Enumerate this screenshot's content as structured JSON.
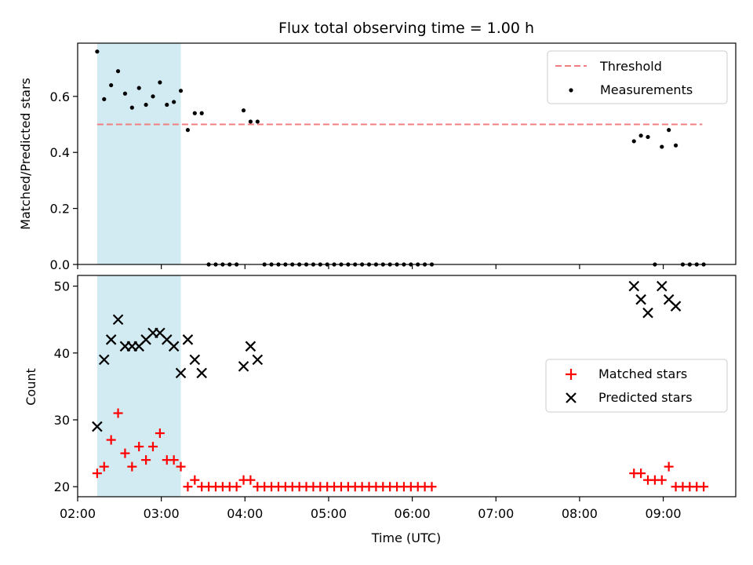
{
  "chart_data": [
    {
      "type": "scatter",
      "title": "Flux total observing time = 1.00 h",
      "xlabel": "",
      "ylabel": "Matched/Predicted stars",
      "xlim": [
        "02:00",
        "09:52"
      ],
      "ylim": [
        0,
        0.79
      ],
      "yticks": [
        "0.0",
        "0.2",
        "0.4",
        "0.6"
      ],
      "shaded_span": [
        "02:14",
        "03:14"
      ],
      "legend_position": "top-right",
      "threshold": {
        "name": "Threshold",
        "value": 0.5,
        "x": [
          "02:14",
          "09:28"
        ],
        "color": "#f08080"
      },
      "series": [
        {
          "name": "Measurements",
          "color": "#000000",
          "points": [
            [
              "02:14",
              0.76
            ],
            [
              "02:19",
              0.59
            ],
            [
              "02:24",
              0.64
            ],
            [
              "02:29",
              0.69
            ],
            [
              "02:34",
              0.61
            ],
            [
              "02:39",
              0.56
            ],
            [
              "02:44",
              0.63
            ],
            [
              "02:49",
              0.57
            ],
            [
              "02:54",
              0.6
            ],
            [
              "02:59",
              0.65
            ],
            [
              "03:04",
              0.57
            ],
            [
              "03:09",
              0.58
            ],
            [
              "03:14",
              0.62
            ],
            [
              "03:19",
              0.48
            ],
            [
              "03:24",
              0.54
            ],
            [
              "03:29",
              0.54
            ],
            [
              "03:34",
              0.0
            ],
            [
              "03:39",
              0.0
            ],
            [
              "03:44",
              0.0
            ],
            [
              "03:49",
              0.0
            ],
            [
              "03:54",
              0.0
            ],
            [
              "03:59",
              0.55
            ],
            [
              "04:04",
              0.51
            ],
            [
              "04:09",
              0.51
            ],
            [
              "04:14",
              0.0
            ],
            [
              "04:19",
              0.0
            ],
            [
              "04:24",
              0.0
            ],
            [
              "04:29",
              0.0
            ],
            [
              "04:34",
              0.0
            ],
            [
              "04:39",
              0.0
            ],
            [
              "04:44",
              0.0
            ],
            [
              "04:49",
              0.0
            ],
            [
              "04:54",
              0.0
            ],
            [
              "04:59",
              0.0
            ],
            [
              "05:04",
              0.0
            ],
            [
              "05:09",
              0.0
            ],
            [
              "05:14",
              0.0
            ],
            [
              "05:19",
              0.0
            ],
            [
              "05:24",
              0.0
            ],
            [
              "05:29",
              0.0
            ],
            [
              "05:34",
              0.0
            ],
            [
              "05:39",
              0.0
            ],
            [
              "05:44",
              0.0
            ],
            [
              "05:49",
              0.0
            ],
            [
              "05:54",
              0.0
            ],
            [
              "05:59",
              0.0
            ],
            [
              "06:04",
              0.0
            ],
            [
              "06:09",
              0.0
            ],
            [
              "06:14",
              0.0
            ],
            [
              "08:39",
              0.44
            ],
            [
              "08:44",
              0.46
            ],
            [
              "08:49",
              0.455
            ],
            [
              "08:54",
              0.0
            ],
            [
              "08:59",
              0.42
            ],
            [
              "09:04",
              0.48
            ],
            [
              "09:09",
              0.425
            ],
            [
              "09:14",
              0.0
            ],
            [
              "09:19",
              0.0
            ],
            [
              "09:24",
              0.0
            ],
            [
              "09:29",
              0.0
            ]
          ]
        }
      ]
    },
    {
      "type": "scatter",
      "title": "",
      "xlabel": "Time (UTC)",
      "ylabel": "Count",
      "xlim": [
        "02:00",
        "09:52"
      ],
      "ylim": [
        18.5,
        51.6
      ],
      "yticks": [
        "20",
        "30",
        "40",
        "50"
      ],
      "xticks": [
        "02:00",
        "03:00",
        "04:00",
        "05:00",
        "06:00",
        "07:00",
        "08:00",
        "09:00"
      ],
      "shaded_span": [
        "02:14",
        "03:14"
      ],
      "legend_position": "center-right",
      "series": [
        {
          "name": "Matched stars",
          "marker": "plus",
          "color": "#ff0000",
          "points": [
            [
              "02:14",
              22
            ],
            [
              "02:19",
              23
            ],
            [
              "02:24",
              27
            ],
            [
              "02:29",
              31
            ],
            [
              "02:34",
              25
            ],
            [
              "02:39",
              23
            ],
            [
              "02:44",
              26
            ],
            [
              "02:49",
              24
            ],
            [
              "02:54",
              26
            ],
            [
              "02:59",
              28
            ],
            [
              "03:04",
              24
            ],
            [
              "03:09",
              24
            ],
            [
              "03:14",
              23
            ],
            [
              "03:19",
              20
            ],
            [
              "03:24",
              21
            ],
            [
              "03:29",
              20
            ],
            [
              "03:34",
              20
            ],
            [
              "03:39",
              20
            ],
            [
              "03:44",
              20
            ],
            [
              "03:49",
              20
            ],
            [
              "03:54",
              20
            ],
            [
              "03:59",
              21
            ],
            [
              "04:04",
              21
            ],
            [
              "04:09",
              20
            ],
            [
              "04:14",
              20
            ],
            [
              "04:19",
              20
            ],
            [
              "04:24",
              20
            ],
            [
              "04:29",
              20
            ],
            [
              "04:34",
              20
            ],
            [
              "04:39",
              20
            ],
            [
              "04:44",
              20
            ],
            [
              "04:49",
              20
            ],
            [
              "04:54",
              20
            ],
            [
              "04:59",
              20
            ],
            [
              "05:04",
              20
            ],
            [
              "05:09",
              20
            ],
            [
              "05:14",
              20
            ],
            [
              "05:19",
              20
            ],
            [
              "05:24",
              20
            ],
            [
              "05:29",
              20
            ],
            [
              "05:34",
              20
            ],
            [
              "05:39",
              20
            ],
            [
              "05:44",
              20
            ],
            [
              "05:49",
              20
            ],
            [
              "05:54",
              20
            ],
            [
              "05:59",
              20
            ],
            [
              "06:04",
              20
            ],
            [
              "06:09",
              20
            ],
            [
              "06:14",
              20
            ],
            [
              "08:39",
              22
            ],
            [
              "08:44",
              22
            ],
            [
              "08:49",
              21
            ],
            [
              "08:54",
              21
            ],
            [
              "08:59",
              21
            ],
            [
              "09:04",
              23
            ],
            [
              "09:09",
              20
            ],
            [
              "09:14",
              20
            ],
            [
              "09:19",
              20
            ],
            [
              "09:24",
              20
            ],
            [
              "09:29",
              20
            ]
          ]
        },
        {
          "name": "Predicted stars",
          "marker": "x",
          "color": "#000000",
          "points": [
            [
              "02:14",
              29
            ],
            [
              "02:19",
              39
            ],
            [
              "02:24",
              42
            ],
            [
              "02:29",
              45
            ],
            [
              "02:34",
              41
            ],
            [
              "02:39",
              41
            ],
            [
              "02:44",
              41
            ],
            [
              "02:49",
              42
            ],
            [
              "02:54",
              43
            ],
            [
              "02:59",
              43
            ],
            [
              "03:04",
              42
            ],
            [
              "03:09",
              41
            ],
            [
              "03:14",
              37
            ],
            [
              "03:19",
              42
            ],
            [
              "03:24",
              39
            ],
            [
              "03:29",
              37
            ],
            [
              "03:59",
              38
            ],
            [
              "04:04",
              41
            ],
            [
              "04:09",
              39
            ],
            [
              "08:39",
              50
            ],
            [
              "08:44",
              48
            ],
            [
              "08:49",
              46
            ],
            [
              "08:59",
              50
            ],
            [
              "09:04",
              48
            ],
            [
              "09:09",
              47
            ]
          ]
        }
      ]
    }
  ]
}
